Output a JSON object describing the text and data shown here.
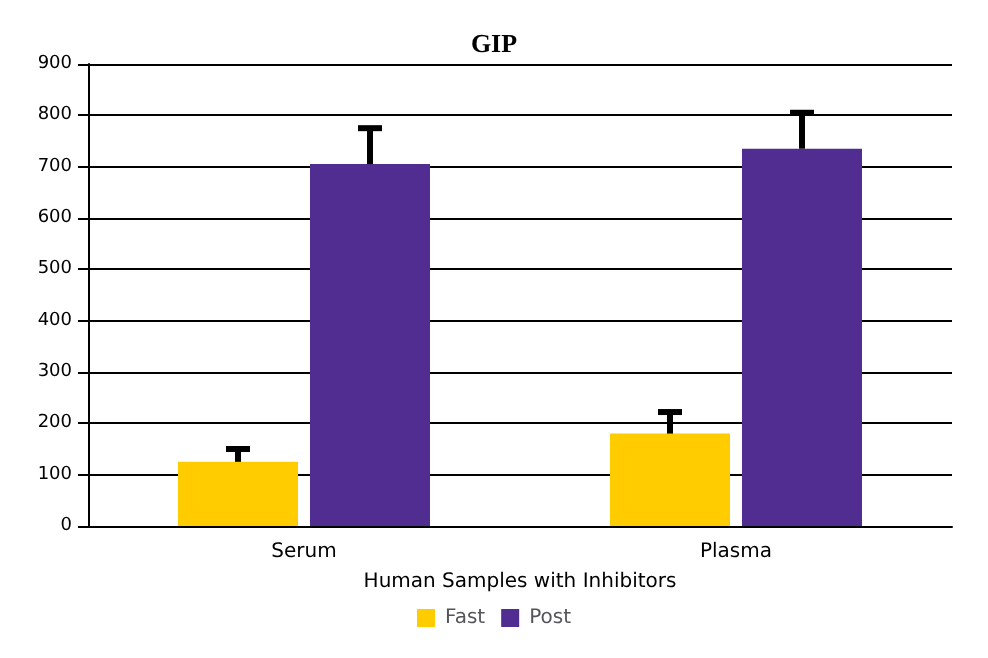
{
  "chart_data": {
    "type": "bar",
    "title": "GIP",
    "xlabel": "Human Samples with Inhibitors",
    "categories": [
      "Serum",
      "Plasma"
    ],
    "series": [
      {
        "name": "Fast",
        "color": "#ffcc00",
        "values": [
          125,
          180
        ],
        "errors": [
          [
            125,
            150
          ],
          [
            180,
            222
          ]
        ]
      },
      {
        "name": "Post",
        "color": "#522d91",
        "values": [
          705,
          735
        ],
        "errors": [
          [
            705,
            775
          ],
          [
            735,
            805
          ]
        ]
      }
    ],
    "ylim": [
      0,
      900
    ],
    "yticks": [
      0,
      100,
      200,
      300,
      400,
      500,
      600,
      700,
      800,
      900
    ],
    "grid": "y",
    "legend": "bottom"
  }
}
